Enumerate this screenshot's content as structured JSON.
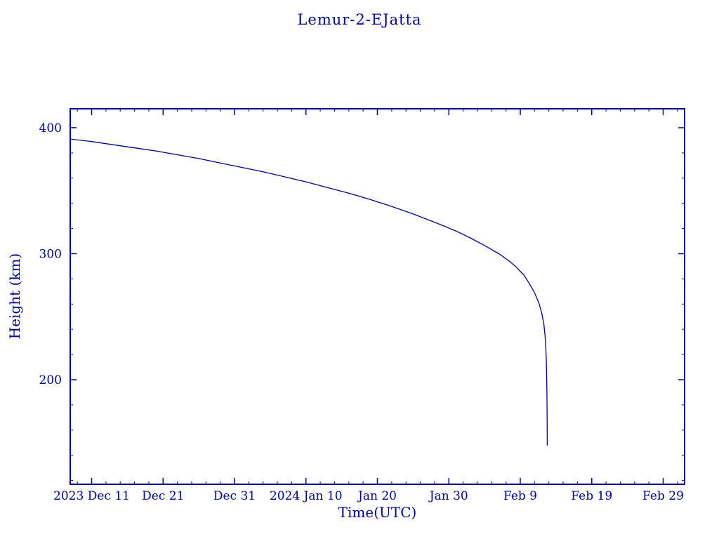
{
  "page": {
    "background_color": "#ffffff",
    "accent_color": "#00008b"
  },
  "chart_data": {
    "type": "line",
    "title": "Lemur-2-EJatta",
    "xlabel": "Time(UTC)",
    "ylabel": "Height (km)",
    "line_color": "#00008b",
    "grid": false,
    "legend": null,
    "x_axis": {
      "unit": "days from 2023 Dec 8",
      "range": [
        0,
        86
      ],
      "major_tick_days": [
        3,
        13,
        23,
        33,
        43,
        53,
        63,
        73,
        83
      ],
      "major_tick_labels": [
        "2023 Dec 11",
        "Dec 21",
        "Dec 31",
        "2024 Jan 10",
        "Jan 20",
        "Jan 30",
        "Feb 9",
        "Feb 19",
        "Feb 29"
      ],
      "minor_tick_step_days": 2
    },
    "y_axis": {
      "range": [
        117,
        415
      ],
      "major_ticks": [
        200,
        300,
        400
      ],
      "major_tick_labels": [
        "200",
        "300",
        "400"
      ],
      "minor_tick_step": 20
    },
    "series": [
      {
        "name": "Lemur-2-EJatta height",
        "x_days": [
          0,
          3,
          6,
          9,
          12,
          15,
          18,
          21,
          24,
          27,
          30,
          33,
          36,
          39,
          42,
          45,
          48,
          51,
          54,
          56,
          58,
          60,
          61.5,
          62.5,
          63.5,
          64.2,
          65,
          65.6,
          66,
          66.3,
          66.45,
          66.55,
          66.62,
          66.67,
          66.71,
          66.74,
          66.76,
          66.77,
          66.775
        ],
        "height_km": [
          391,
          389,
          386.5,
          384,
          381.5,
          378.5,
          375.5,
          372,
          368.5,
          365,
          361,
          357,
          352.5,
          348,
          343,
          337.5,
          331.5,
          325,
          318,
          312.5,
          306.5,
          300,
          294,
          289,
          283,
          277,
          269,
          261,
          253,
          244,
          236,
          228,
          219,
          209,
          198,
          185,
          170,
          157,
          148
        ]
      }
    ]
  }
}
